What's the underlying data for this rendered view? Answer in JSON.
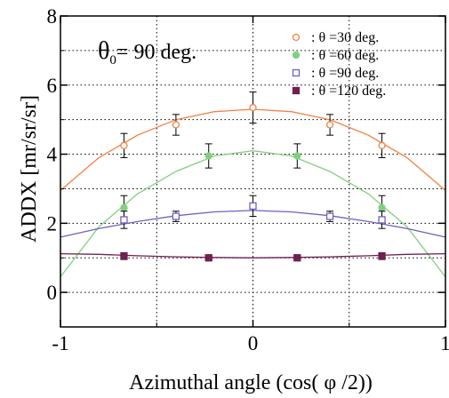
{
  "chart_data": {
    "type": "line",
    "xlabel": "Azimuthal angle (cos( φ /2))",
    "ylabel": "ADDX [mr/sr/sr]",
    "xlim": [
      -1,
      1
    ],
    "ylim": [
      -1,
      8
    ],
    "x_ticks": [
      "-1",
      "0",
      "1"
    ],
    "y_ticks": [
      "0",
      "2",
      "4",
      "6",
      "8"
    ],
    "grid": true,
    "legend_position": "top-right",
    "annotation": {
      "symbol": "θ",
      "sub": "0",
      "text": "= 90 deg."
    },
    "series": [
      {
        "name": ": θ =30 deg.",
        "color": "#f08040",
        "marker": "open-circle",
        "x": [
          -0.67,
          -0.4,
          0,
          0.4,
          0.67
        ],
        "y": [
          4.25,
          4.85,
          5.35,
          4.85,
          4.25
        ],
        "err": [
          0.35,
          0.3,
          0.45,
          0.3,
          0.35
        ],
        "curve": [
          [
            -1,
            2.95
          ],
          [
            -0.8,
            3.9
          ],
          [
            -0.6,
            4.55
          ],
          [
            -0.4,
            5.0
          ],
          [
            -0.2,
            5.23
          ],
          [
            0,
            5.3
          ],
          [
            0.2,
            5.23
          ],
          [
            0.4,
            5.0
          ],
          [
            0.6,
            4.55
          ],
          [
            0.8,
            3.9
          ],
          [
            1,
            2.95
          ]
        ]
      },
      {
        "name": ": θ =60 deg.",
        "color": "#80d080",
        "marker": "filled-circle",
        "x": [
          -0.67,
          -0.23,
          0.23,
          0.67
        ],
        "y": [
          2.45,
          3.95,
          3.95,
          2.45
        ],
        "err": [
          0.35,
          0.35,
          0.35,
          0.35
        ],
        "curve": [
          [
            -1,
            0.45
          ],
          [
            -0.8,
            1.9
          ],
          [
            -0.6,
            2.85
          ],
          [
            -0.4,
            3.5
          ],
          [
            -0.2,
            3.95
          ],
          [
            0,
            4.1
          ],
          [
            0.2,
            3.95
          ],
          [
            0.4,
            3.5
          ],
          [
            0.6,
            2.85
          ],
          [
            0.8,
            1.9
          ],
          [
            1,
            0.45
          ]
        ]
      },
      {
        "name": ": θ =90 deg.",
        "color": "#7060c0",
        "marker": "open-square",
        "x": [
          -0.67,
          -0.4,
          0,
          0.4,
          0.67
        ],
        "y": [
          2.1,
          2.2,
          2.5,
          2.2,
          2.1
        ],
        "err": [
          0.25,
          0.15,
          0.3,
          0.15,
          0.25
        ],
        "curve": [
          [
            -1,
            1.6
          ],
          [
            -0.8,
            1.85
          ],
          [
            -0.6,
            2.05
          ],
          [
            -0.4,
            2.22
          ],
          [
            -0.2,
            2.33
          ],
          [
            0,
            2.37
          ],
          [
            0.2,
            2.33
          ],
          [
            0.4,
            2.22
          ],
          [
            0.6,
            2.05
          ],
          [
            0.8,
            1.85
          ],
          [
            1,
            1.6
          ]
        ]
      },
      {
        "name": ": θ =120 deg.",
        "color": "#702050",
        "marker": "filled-square",
        "x": [
          -0.67,
          -0.23,
          0.23,
          0.67
        ],
        "y": [
          1.05,
          1.0,
          1.0,
          1.05
        ],
        "err": [
          0.1,
          0.08,
          0.08,
          0.1
        ],
        "curve": [
          [
            -1,
            1.12
          ],
          [
            -0.8,
            1.1
          ],
          [
            -0.6,
            1.06
          ],
          [
            -0.4,
            1.03
          ],
          [
            -0.2,
            1.01
          ],
          [
            0,
            1.0
          ],
          [
            0.2,
            1.01
          ],
          [
            0.4,
            1.03
          ],
          [
            0.6,
            1.06
          ],
          [
            0.8,
            1.1
          ],
          [
            1,
            1.12
          ]
        ]
      }
    ]
  }
}
